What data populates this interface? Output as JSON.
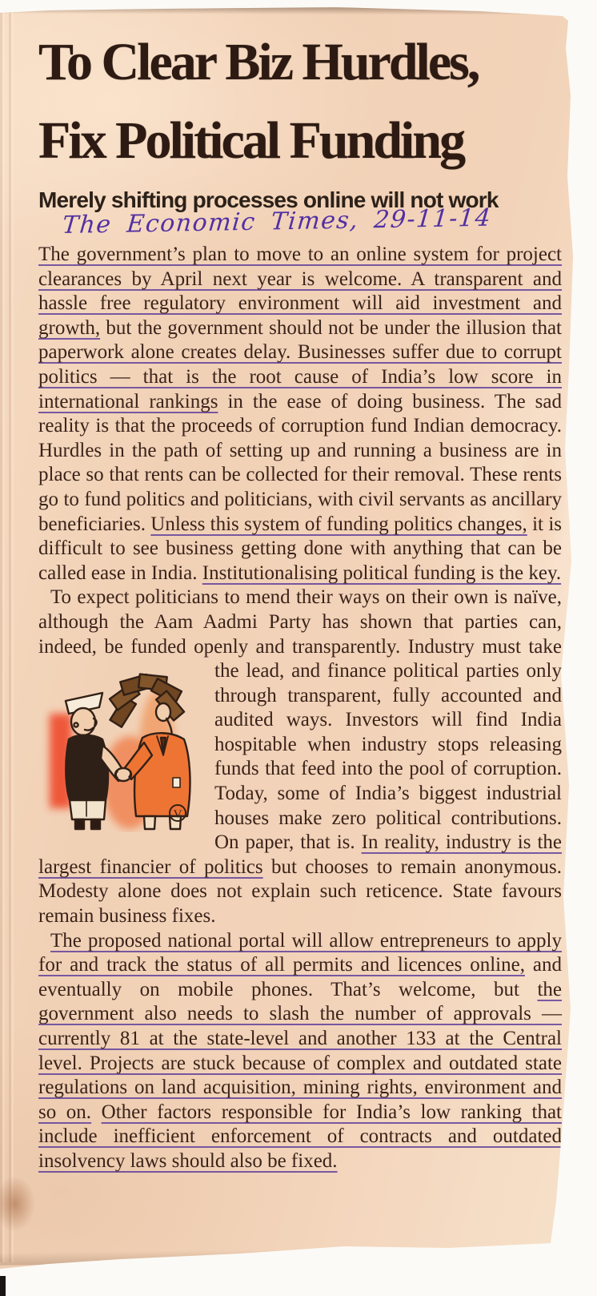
{
  "scan": {
    "paper_color": "#f2d3b9",
    "ink_annotation_color": "#5130a3",
    "headline_color": "#2d1b13",
    "annotation_handwritten": "The Economic Times, 29-11-14"
  },
  "article": {
    "headline_line1": "To Clear Biz Hurdles,",
    "headline_line2": "Fix Political Funding",
    "subhead": "Merely shifting processes online will not work",
    "cartoon_signature": "V",
    "paragraphs": [
      {
        "indent": false,
        "segments": [
          {
            "t": "The government’s plan to move to an online system for project clearances by April next year is welcome. A transparent and hassle free regulatory environment will aid investment and growth,",
            "u": true
          },
          {
            "t": " but the government should not be under the illusion that ",
            "u": false
          },
          {
            "t": "paperwork alone creates delay. Businesses suffer due to corrupt politics — that is the root cause of India’s low score in international rankings",
            "u": true
          },
          {
            "t": " in the ease of doing business. The sad reality is that the proceeds of corruption fund Indian democracy. Hurdles in the path of setting up and running a business are in place so that rents can be collected for their removal. These rents go to fund politics and politicians, with civil servants as ancillary beneficiaries. ",
            "u": false
          },
          {
            "t": "Unless this system of funding politics changes,",
            "u": true
          },
          {
            "t": " it is difficult to see business getting done with anything that can be called ease in India. ",
            "u": false
          },
          {
            "t": "Institutionalising political funding is the key.",
            "u": true
          }
        ]
      },
      {
        "indent": true,
        "segments": [
          {
            "t": "To expect politicians to mend their ways on their own is naïve, although the Aam Aadmi Party has shown that parties can, indeed, be funded openly and transparently. ",
            "u": false
          },
          {
            "cartoon": true
          },
          {
            "t": "Industry must take the lead, and finance political parties only through transparent, fully accounted and audited ways. Investors will find India hospitable when industry stops releasing funds that feed into the pool of corruption. Today, some of India’s biggest industrial houses make zero political contributions. On paper, that is. ",
            "u": false
          },
          {
            "t": "In reality, industry is the largest financier of politics",
            "u": true
          },
          {
            "t": " but chooses to remain anonymous. Modesty alone does not explain such reticence. State favours remain business fixes.",
            "u": false
          }
        ]
      },
      {
        "indent": true,
        "segments": [
          {
            "t": "The proposed national portal will allow entrepreneurs to apply for and track the status of all permits and licences online,",
            "u": true
          },
          {
            "t": " and eventually on mobile phones. That’s welcome, but ",
            "u": false
          },
          {
            "t": "the government also needs to slash the number of approvals — currently 81 at the state-level and another 133 at the Central level. Projects are stuck because of complex and outdated state regulations on land acquisition, mining rights, environment and so on.",
            "u": true
          },
          {
            "t": " ",
            "u": false
          },
          {
            "t": "Other factors responsible for India’s low ranking that include inefficient enforcement of contracts and outdated insolvency laws should also be fixed.",
            "u": true
          }
        ]
      }
    ]
  }
}
